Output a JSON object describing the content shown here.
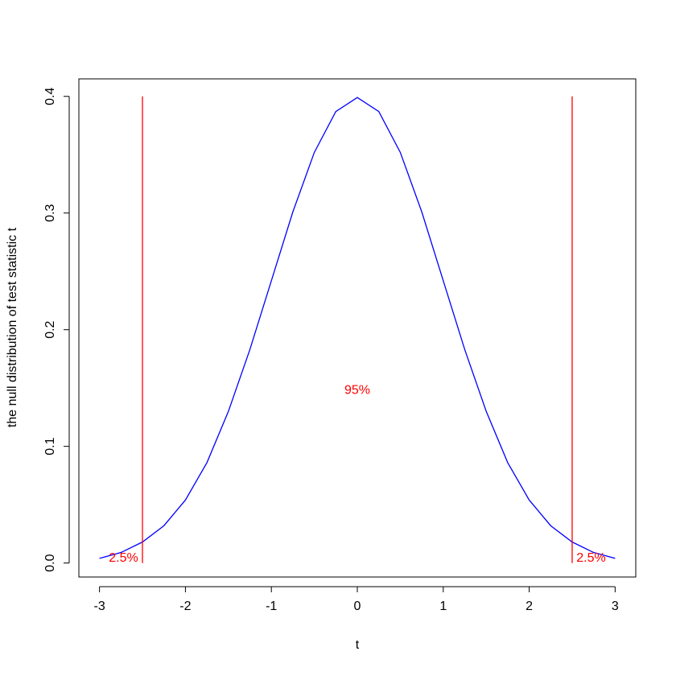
{
  "chart_data": {
    "type": "line",
    "xlabel": "t",
    "ylabel": "the null distribution of test statistic t",
    "x": [
      -3,
      -2.75,
      -2.5,
      -2.25,
      -2,
      -1.75,
      -1.5,
      -1.25,
      -1,
      -0.75,
      -0.5,
      -0.25,
      0,
      0.25,
      0.5,
      0.75,
      1,
      1.25,
      1.5,
      1.75,
      2,
      2.25,
      2.5,
      2.75,
      3
    ],
    "values": [
      0.004,
      0.009,
      0.018,
      0.032,
      0.054,
      0.086,
      0.13,
      0.183,
      0.242,
      0.301,
      0.352,
      0.387,
      0.399,
      0.387,
      0.352,
      0.301,
      0.242,
      0.183,
      0.13,
      0.086,
      0.054,
      0.032,
      0.018,
      0.009,
      0.004
    ],
    "color": "#0000ff",
    "xlim": [
      -3.24,
      3.24
    ],
    "ylim": [
      -0.012,
      0.415
    ],
    "xticks": [
      -3,
      -2,
      -1,
      0,
      1,
      2,
      3
    ],
    "yticks": [
      {
        "value": 0,
        "label": "0.0"
      },
      0.1,
      0.2,
      0.3,
      0.4
    ],
    "vlines": [
      {
        "x": -2.5,
        "ymin": 0,
        "ymax": 0.4,
        "color": "#ff0000"
      },
      {
        "x": 2.5,
        "ymin": 0,
        "ymax": 0.4,
        "color": "#ff0000"
      }
    ],
    "annotations": [
      {
        "text": "2.5%",
        "x": -2.72,
        "y": 0.004,
        "color": "#ff0000"
      },
      {
        "text": "95%",
        "x": 0,
        "y": 0.148,
        "color": "#ff0000"
      },
      {
        "text": "2.5%",
        "x": 2.72,
        "y": 0.004,
        "color": "#ff0000"
      }
    ]
  }
}
